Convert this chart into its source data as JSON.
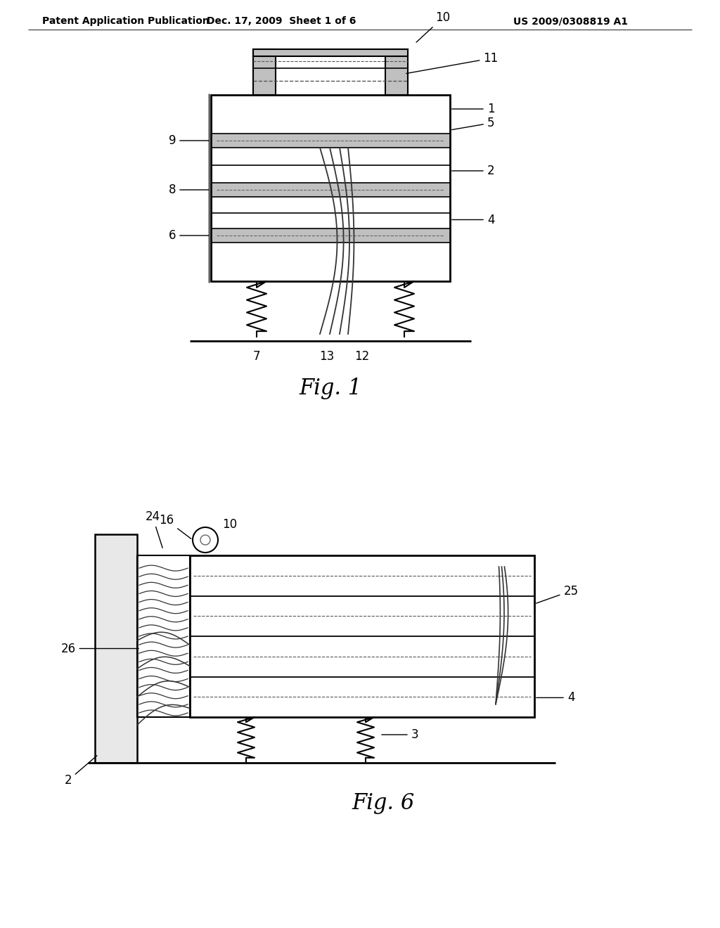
{
  "bg_color": "#ffffff",
  "header_left": "Patent Application Publication",
  "header_mid": "Dec. 17, 2009  Sheet 1 of 6",
  "header_right": "US 2009/0308819 A1",
  "fig1_label": "Fig. 1",
  "fig6_label": "Fig. 6",
  "line_color": "#000000",
  "gray_fill": "#c8c8c8",
  "light_gray": "#e0e0e0"
}
